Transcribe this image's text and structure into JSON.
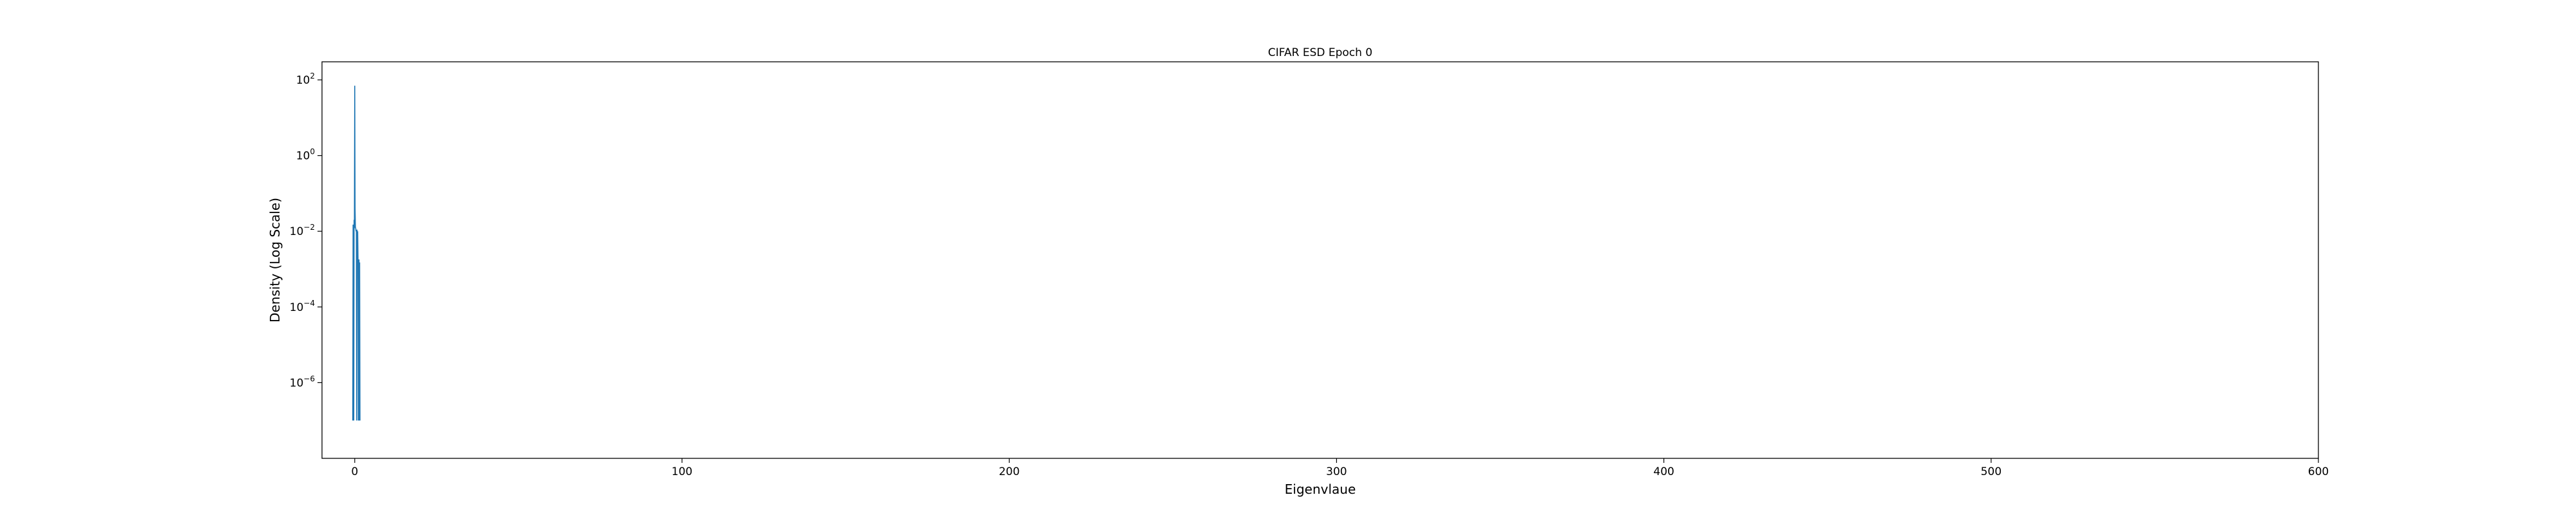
{
  "chart_data": {
    "type": "line",
    "title": "CIFAR ESD Epoch 0",
    "xlabel": "Eigenvlaue",
    "ylabel": "Density (Log Scale)",
    "xlim": [
      -10,
      600
    ],
    "ylim": [
      1e-08,
      300
    ],
    "yscale": "log",
    "grid": false,
    "x_ticks": [
      {
        "value": 0,
        "label": "0"
      },
      {
        "value": 100,
        "label": "100"
      },
      {
        "value": 200,
        "label": "200"
      },
      {
        "value": 300,
        "label": "300"
      },
      {
        "value": 400,
        "label": "400"
      },
      {
        "value": 500,
        "label": "500"
      },
      {
        "value": 600,
        "label": "600"
      }
    ],
    "y_ticks": [
      {
        "value": 100,
        "base": "10",
        "exp": "2"
      },
      {
        "value": 1,
        "base": "10",
        "exp": "0"
      },
      {
        "value": 0.01,
        "base": "10",
        "exp": "−2"
      },
      {
        "value": 0.0001,
        "base": "10",
        "exp": "−4"
      },
      {
        "value": 1e-06,
        "base": "10",
        "exp": "−6"
      }
    ],
    "color": "#1f77b4",
    "series": [
      {
        "x": [
          -0.6,
          -0.5,
          -0.4,
          -0.3,
          -0.2,
          -0.1,
          0.0,
          0.1,
          0.2,
          0.3,
          0.4,
          0.5,
          0.6,
          0.7,
          0.8,
          0.9,
          1.0,
          1.1,
          1.2,
          1.3,
          1.4,
          1.5,
          1.6
        ],
        "y": [
          1e-07,
          0.015,
          0.012,
          1e-07,
          0.02,
          0.012,
          70,
          0.04,
          0.013,
          0.012,
          0.01,
          0.011,
          1e-07,
          0.011,
          0.0015,
          0.01,
          0.002,
          1e-07,
          0.0005,
          0.0018,
          1e-07,
          0.0015,
          1e-07
        ]
      }
    ]
  }
}
